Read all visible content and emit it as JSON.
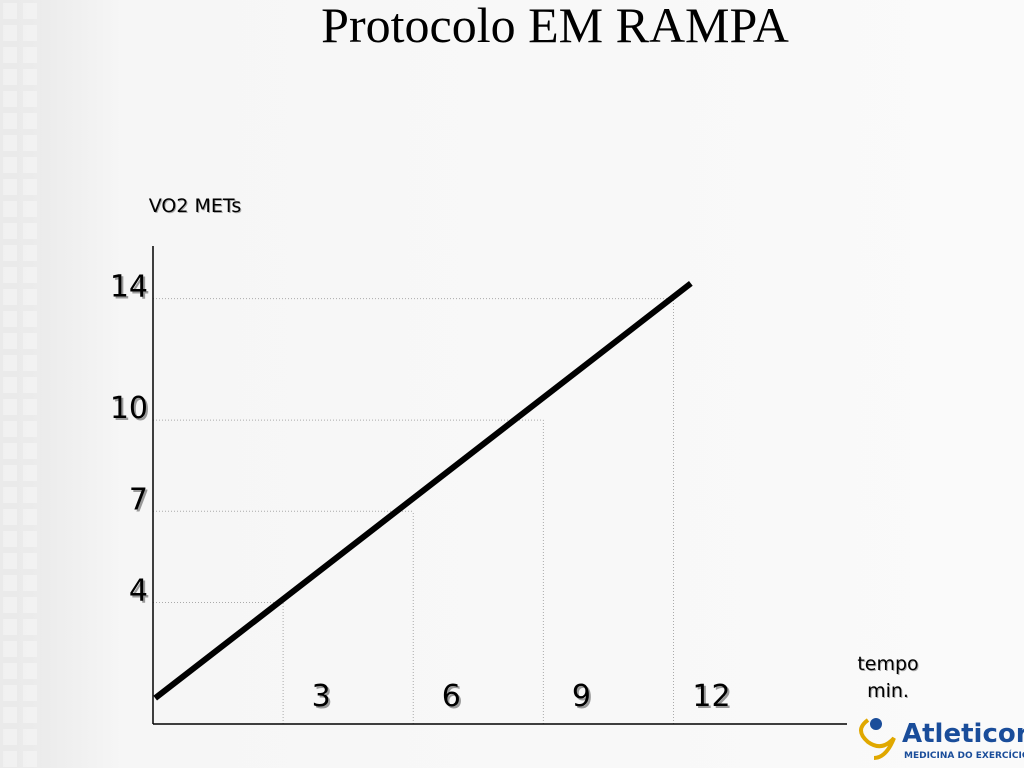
{
  "chart_data": {
    "type": "line",
    "title": "Protocolo EM  RAMPA",
    "y_label": "VO2 METs",
    "x_label": [
      "tempo",
      "min."
    ],
    "x": [
      0.05,
      12.4
    ],
    "values": [
      0.85,
      14.5
    ],
    "color": "#000000",
    "xlim": [
      0,
      16
    ],
    "ylim": [
      0,
      15.5
    ],
    "xticks": [
      3,
      6,
      9,
      12
    ],
    "yticks": [
      4,
      7,
      10,
      14
    ],
    "grid": true
  },
  "logo": {
    "name": "Atleticor",
    "tagline": "MEDICINA DO EXERCÍCIO"
  }
}
